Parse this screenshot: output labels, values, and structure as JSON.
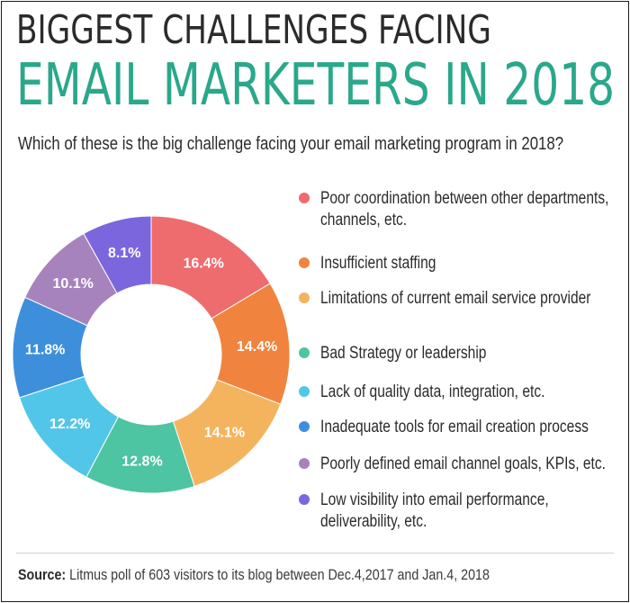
{
  "header": {
    "title_line1": "BIGGEST CHALLENGES FACING",
    "title_line2": "EMAIL MARKETERS IN 2018",
    "question": "Which of these is the big challenge facing your email marketing program in 2018?"
  },
  "footer": {
    "source_label": "Source:",
    "source_text": "Litmus poll of 603 visitors to its blog between Dec.4,2017 and Jan.4, 2018"
  },
  "chart_data": {
    "type": "pie",
    "donut": true,
    "legend_position": "right",
    "categories": [
      "Poor coordination between other departments, channels, etc.",
      "Insufficient staffing",
      "Limitations of current email service provider",
      "Bad Strategy or leadership",
      "Lack of quality data, integration, etc.",
      "Inadequate tools for email creation process",
      "Poorly defined email channel goals, KPIs, etc.",
      "Low visibility into email performance, deliverability, etc."
    ],
    "values": [
      16.4,
      14.4,
      14.1,
      12.8,
      12.2,
      11.8,
      10.1,
      8.1
    ],
    "labels": [
      "16.4%",
      "14.4%",
      "14.1%",
      "12.8%",
      "12.2%",
      "11.8%",
      "10.1%",
      "8.1%"
    ],
    "colors": [
      "#ee6b6e",
      "#f0843e",
      "#f4b45e",
      "#4dc4a2",
      "#52c6e8",
      "#3d8fdc",
      "#a783bd",
      "#7b66dd"
    ]
  }
}
